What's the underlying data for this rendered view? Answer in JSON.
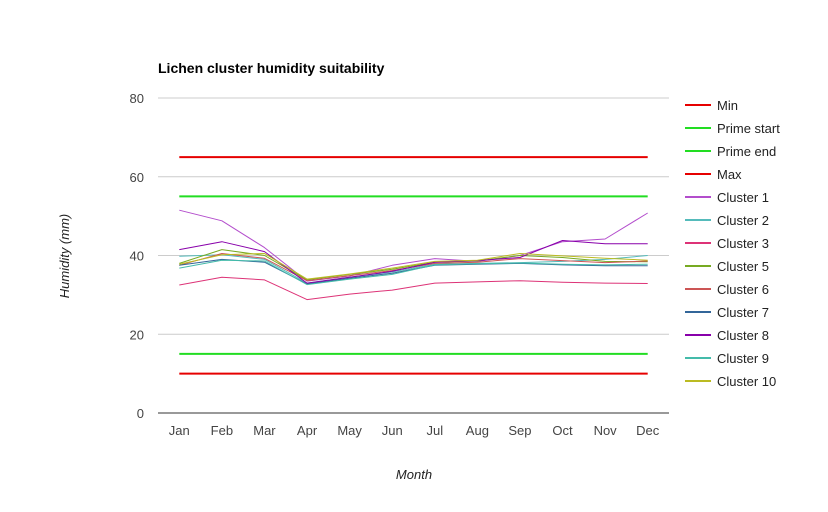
{
  "chart_data": {
    "type": "line",
    "title": "Lichen cluster humidity suitability",
    "xlabel": "Month",
    "ylabel": "Humidity (mm)",
    "ylim": [
      0,
      80
    ],
    "yticks": [
      0,
      20,
      40,
      60,
      80
    ],
    "grid": true,
    "legend_position": "right",
    "categories": [
      "Jan",
      "Feb",
      "Mar",
      "Apr",
      "May",
      "Jun",
      "Jul",
      "Aug",
      "Sep",
      "Oct",
      "Nov",
      "Dec"
    ],
    "series": [
      {
        "name": "Min",
        "color": "#e60000",
        "width": 2,
        "values": [
          10,
          10,
          10,
          10,
          10,
          10,
          10,
          10,
          10,
          10,
          10,
          10
        ]
      },
      {
        "name": "Prime start",
        "color": "#22dd22",
        "width": 2,
        "values": [
          15,
          15,
          15,
          15,
          15,
          15,
          15,
          15,
          15,
          15,
          15,
          15
        ]
      },
      {
        "name": "Prime end",
        "color": "#22dd22",
        "width": 2,
        "values": [
          55,
          55,
          55,
          55,
          55,
          55,
          55,
          55,
          55,
          55,
          55,
          55
        ]
      },
      {
        "name": "Max",
        "color": "#e60000",
        "width": 2,
        "values": [
          65,
          65,
          65,
          65,
          65,
          65,
          65,
          65,
          65,
          65,
          65,
          65
        ]
      },
      {
        "name": "Cluster 1",
        "color": "#b34dcc",
        "width": 1,
        "values": [
          51.5,
          48.8,
          42,
          33.5,
          34.8,
          37.5,
          39.2,
          38.5,
          40,
          43.5,
          44.2,
          50.8
        ]
      },
      {
        "name": "Cluster 2",
        "color": "#55bbbb",
        "width": 1,
        "values": [
          39.8,
          40.2,
          39,
          33,
          34.5,
          35.8,
          37.8,
          38,
          38.2,
          38.5,
          39,
          40
        ]
      },
      {
        "name": "Cluster 3",
        "color": "#dd3377",
        "width": 1,
        "values": [
          32.5,
          34.5,
          33.8,
          28.8,
          30.2,
          31.2,
          33,
          33.3,
          33.6,
          33.2,
          33,
          32.9
        ]
      },
      {
        "name": "Cluster 5",
        "color": "#77aa22",
        "width": 1,
        "values": [
          38,
          41.5,
          40,
          33.8,
          35.2,
          36.5,
          38.3,
          38.6,
          40,
          39.5,
          38.5,
          38.4
        ]
      },
      {
        "name": "Cluster 6",
        "color": "#cc5555",
        "width": 1,
        "values": [
          37.5,
          40.5,
          39.3,
          33.6,
          34.9,
          36.2,
          38,
          38.3,
          39.2,
          38.7,
          38.2,
          38.6
        ]
      },
      {
        "name": "Cluster 7",
        "color": "#336699",
        "width": 1,
        "values": [
          37.5,
          39,
          38.3,
          32.8,
          34.2,
          35.5,
          37.5,
          37.8,
          38,
          37.6,
          37.4,
          37.4
        ]
      },
      {
        "name": "Cluster 8",
        "color": "#8800aa",
        "width": 1,
        "values": [
          41.5,
          43.5,
          41,
          33,
          34.5,
          36,
          38.3,
          38.7,
          39.5,
          43.8,
          43,
          43
        ]
      },
      {
        "name": "Cluster 9",
        "color": "#44bbaa",
        "width": 1,
        "values": [
          36.8,
          38.8,
          38.6,
          32.6,
          34,
          35.2,
          37.6,
          37.9,
          38.1,
          37.8,
          37.6,
          37.8
        ]
      },
      {
        "name": "Cluster 10",
        "color": "#bbbb22",
        "width": 1,
        "values": [
          37.8,
          40.2,
          40.5,
          34,
          35.3,
          36.8,
          38.5,
          38.8,
          40.5,
          39.9,
          39.3,
          38.8
        ]
      }
    ]
  }
}
